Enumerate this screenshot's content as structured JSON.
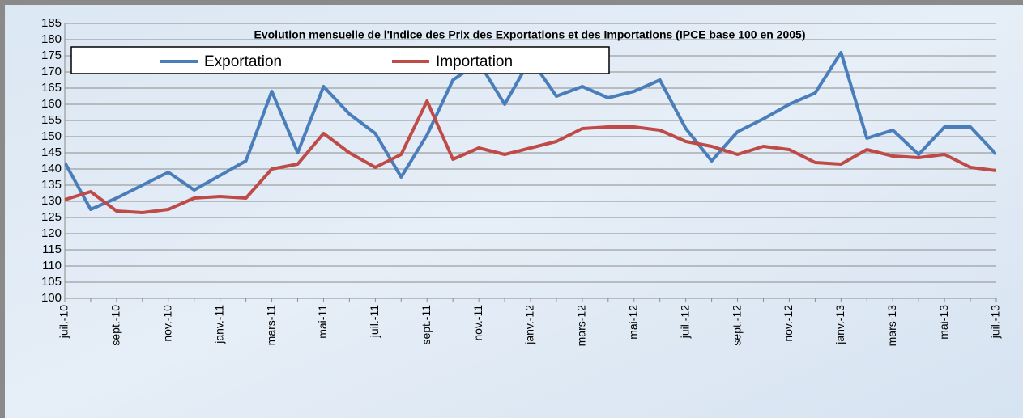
{
  "chart_data": {
    "type": "line",
    "title": "Evolution mensuelle de l'Indice des Prix des Exportations et des Importations (IPCE base 100 en 2005)",
    "categories": [
      "juil.-10",
      null,
      "sept.-10",
      null,
      "nov.-10",
      null,
      "janv.-11",
      null,
      "mars-11",
      null,
      "mai-11",
      null,
      "juil.-11",
      null,
      "sept.-11",
      null,
      "nov.-11",
      null,
      "janv.-12",
      null,
      "mars-12",
      null,
      "mai-12",
      null,
      "juil.-12",
      null,
      "sept.-12",
      null,
      "nov.-12",
      null,
      "janv.-13",
      null,
      "mars-13",
      null,
      "mai-13",
      null,
      "juil.-13"
    ],
    "series": [
      {
        "name": "Exportation",
        "color": "#4a7ebb",
        "values": [
          142,
          127.5,
          131,
          135,
          139,
          133.5,
          138,
          142.5,
          164,
          145,
          165.5,
          157,
          151,
          137.5,
          150.5,
          167.5,
          173,
          160,
          174,
          162.5,
          165.5,
          162,
          164,
          167.5,
          152.5,
          142.5,
          151.5,
          155.5,
          160,
          163.5,
          176,
          149.5,
          152,
          144.5,
          153,
          153,
          144.5
        ]
      },
      {
        "name": "Importation",
        "color": "#be4b48",
        "values": [
          130.5,
          133,
          127,
          126.5,
          127.5,
          131,
          131.5,
          131,
          140,
          141.5,
          151,
          145,
          140.5,
          144.5,
          161,
          143,
          146.5,
          144.5,
          146.5,
          148.5,
          152.5,
          153,
          153,
          152,
          148.5,
          147,
          144.5,
          147,
          146,
          142,
          141.5,
          146,
          144,
          143.5,
          144.5,
          140.5,
          139.5
        ]
      }
    ],
    "ylim": [
      100,
      185
    ],
    "yticks": [
      100,
      105,
      110,
      115,
      120,
      125,
      130,
      135,
      140,
      145,
      150,
      155,
      160,
      165,
      170,
      175,
      180,
      185
    ],
    "grid": true
  }
}
